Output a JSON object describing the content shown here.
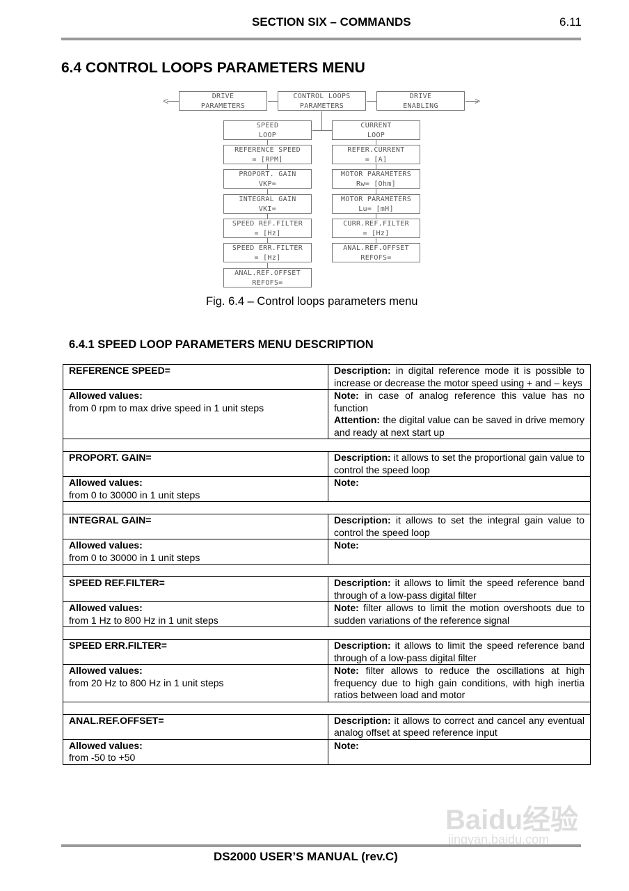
{
  "header": {
    "title": "SECTION SIX – COMMANDS",
    "page": "6.11"
  },
  "heading": "6.4 CONTROL LOOPS PARAMETERS MENU",
  "diagram": {
    "top": [
      [
        "DRIVE",
        "PARAMETERS"
      ],
      [
        "CONTROL LOOPS",
        "PARAMETERS"
      ],
      [
        "DRIVE",
        "ENABLING"
      ]
    ],
    "left": [
      [
        "SPEED",
        "LOOP"
      ],
      [
        "REFERENCE SPEED",
        "= [RPM]"
      ],
      [
        "PROPORT. GAIN",
        "VKP="
      ],
      [
        "INTEGRAL GAIN",
        "VKI="
      ],
      [
        "SPEED REF.FILTER",
        "= [Hz]"
      ],
      [
        "SPEED ERR.FILTER",
        "= [Hz]"
      ],
      [
        "ANAL.REF.OFFSET",
        "REFOFS="
      ]
    ],
    "right": [
      [
        "CURRENT",
        "LOOP"
      ],
      [
        "REFER.CURRENT",
        "= [A]"
      ],
      [
        "MOTOR PARAMETERS",
        "Rw= [Ohm]"
      ],
      [
        "MOTOR PARAMETERS",
        "Lu= [mH]"
      ],
      [
        "CURR.REF.FILTER",
        "= [Hz]"
      ],
      [
        "ANAL.REF.OFFSET",
        "REFOFS="
      ]
    ],
    "arrow_left": "<",
    "arrow_right": ">"
  },
  "caption": "Fig. 6.4 – Control loops parameters menu",
  "subheading": "6.4.1 SPEED LOOP PARAMETERS MENU DESCRIPTION",
  "table": [
    {
      "name": "REFERENCE SPEED=",
      "desc_label": "Description:",
      "desc": " in digital reference mode it is possible to increase or decrease the motor speed using + and – keys",
      "allowed_label": "Allowed values:",
      "allowed": "from 0 rpm to max drive speed in 1 unit steps",
      "note_label": "Note:",
      "note": " in case of analog reference this value has no function",
      "att_label": "Attention:",
      "att": " the digital value can be saved in drive memory and ready at next start up"
    },
    {
      "name": "PROPORT. GAIN=",
      "desc_label": "Description:",
      "desc": " it allows to set the proportional gain value to control the speed loop",
      "allowed_label": "Allowed values:",
      "allowed": "from 0 to 30000 in 1 unit steps",
      "note_label": "Note:",
      "note": ""
    },
    {
      "name": "INTEGRAL GAIN=",
      "desc_label": "Description:",
      "desc": " it allows to set the integral gain value to control the speed loop",
      "allowed_label": "Allowed values:",
      "allowed": "from 0 to 30000 in 1 unit steps",
      "note_label": "Note:",
      "note": ""
    },
    {
      "name": "SPEED REF.FILTER=",
      "desc_label": "Description:",
      "desc": " it allows to limit the speed reference band through of a low-pass digital filter",
      "allowed_label": "Allowed values:",
      "allowed": "from 1 Hz to 800 Hz in 1 unit steps",
      "note_label": "Note:",
      "note": " filter allows to limit the motion overshoots due to sudden variations of the reference signal"
    },
    {
      "name": "SPEED ERR.FILTER=",
      "desc_label": "Description:",
      "desc": " it allows to limit the speed reference band through of a low-pass digital filter",
      "allowed_label": "Allowed values:",
      "allowed": "from 20 Hz to 800 Hz in 1 unit steps",
      "note_label": "Note:",
      "note": " filter allows to reduce the oscillations at high frequency due to high gain conditions, with high inertia ratios between load and motor"
    },
    {
      "name": "ANAL.REF.OFFSET=",
      "desc_label": "Description:",
      "desc": " it allows to correct and cancel any eventual analog offset at speed reference input",
      "allowed_label": "Allowed values:",
      "allowed": "from -50 to +50",
      "note_label": "Note:",
      "note": ""
    }
  ],
  "footer": "DS2000 USER’S MANUAL (rev.C)",
  "watermark": {
    "logo": "Baidu经验",
    "url": "jingyan.baidu.com"
  }
}
